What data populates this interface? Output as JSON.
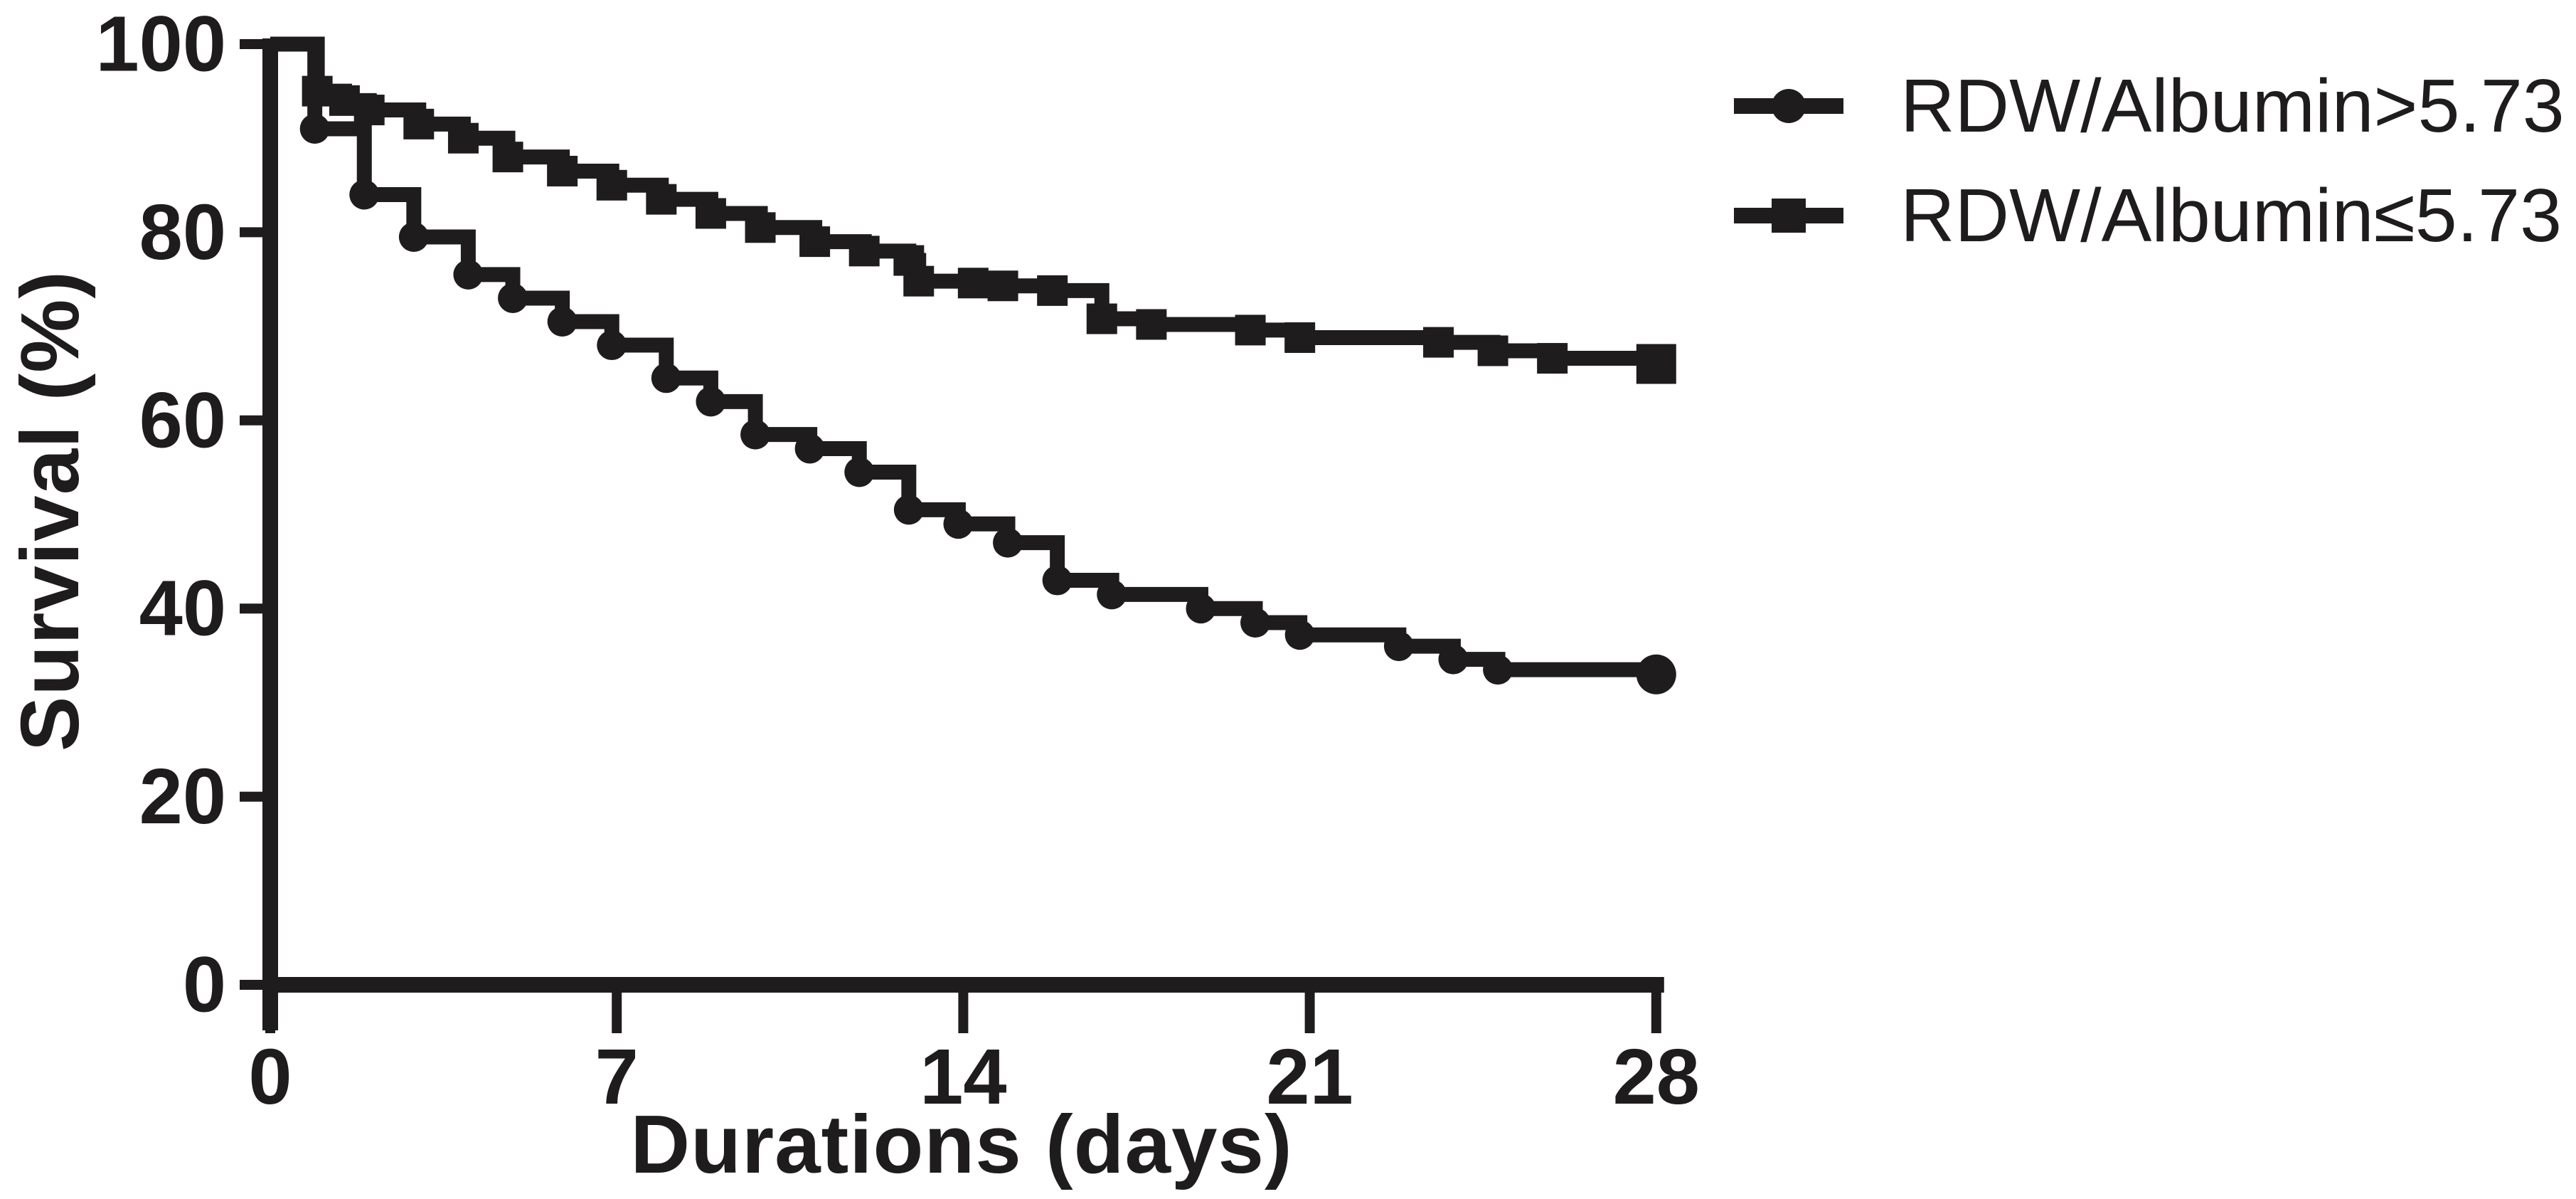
{
  "figure": {
    "background_color": "#ffffff",
    "ink_color": "#1f1c1d"
  },
  "y_axis": {
    "label": "Survival (%)",
    "tick_labels": [
      "0",
      "20",
      "40",
      "60",
      "80",
      "100"
    ],
    "ticks": [
      0,
      20,
      40,
      60,
      80,
      100
    ],
    "range": [
      0,
      100
    ]
  },
  "x_axis": {
    "label": "Durations (days)",
    "tick_labels": [
      "0",
      "7",
      "14",
      "21",
      "28"
    ],
    "ticks": [
      0,
      7,
      14,
      21,
      28
    ],
    "range": [
      0,
      28
    ]
  },
  "legend": {
    "items": [
      {
        "label": "RDW/Albumin>5.73",
        "marker": "circle"
      },
      {
        "label": "RDW/Albumin≤5.73",
        "marker": "square"
      }
    ],
    "position": "upper right"
  },
  "chart_data": {
    "type": "line",
    "subtype": "kaplan-meier-step",
    "title": "",
    "xlabel": "Durations (days)",
    "ylabel": "Survival (%)",
    "xlim": [
      0,
      28
    ],
    "ylim": [
      0,
      100
    ],
    "grid": false,
    "legend_position": "upper right",
    "series": [
      {
        "name": "RDW/Albumin>5.73",
        "marker": "circle",
        "color": "#1f1c1d",
        "points_day_percent": [
          [
            0,
            100
          ],
          [
            0.9,
            91
          ],
          [
            1.9,
            84
          ],
          [
            2.9,
            79.5
          ],
          [
            4,
            75.5
          ],
          [
            4.9,
            73
          ],
          [
            5.9,
            70.5
          ],
          [
            6.9,
            68
          ],
          [
            8,
            64.5
          ],
          [
            8.9,
            62
          ],
          [
            9.8,
            58.5
          ],
          [
            10.9,
            57
          ],
          [
            11.9,
            54.5
          ],
          [
            12.9,
            50.5
          ],
          [
            13.9,
            49
          ],
          [
            14.9,
            47
          ],
          [
            15.9,
            43
          ],
          [
            17,
            41.5
          ],
          [
            18.8,
            40
          ],
          [
            19.9,
            38.5
          ],
          [
            20.8,
            37.2
          ],
          [
            22.8,
            36
          ],
          [
            23.9,
            34.6
          ],
          [
            24.8,
            33.5
          ],
          [
            28,
            33
          ]
        ]
      },
      {
        "name": "RDW/Albumin≤5.73",
        "marker": "square",
        "color": "#1f1c1d",
        "points_day_percent": [
          [
            0,
            100
          ],
          [
            0.95,
            95
          ],
          [
            1.5,
            94
          ],
          [
            2,
            93
          ],
          [
            3,
            91.5
          ],
          [
            3.9,
            90
          ],
          [
            4.8,
            88
          ],
          [
            5.9,
            86.5
          ],
          [
            6.9,
            85
          ],
          [
            7.9,
            83.5
          ],
          [
            8.9,
            82
          ],
          [
            9.9,
            80.5
          ],
          [
            11,
            79
          ],
          [
            12,
            78
          ],
          [
            12.9,
            77
          ],
          [
            13.1,
            74.8
          ],
          [
            14.2,
            74.6
          ],
          [
            14.8,
            74.3
          ],
          [
            15.8,
            73.8
          ],
          [
            16.8,
            70.8
          ],
          [
            17.8,
            70.2
          ],
          [
            19.8,
            69.6
          ],
          [
            20.8,
            68.8
          ],
          [
            23.6,
            68.3
          ],
          [
            24.7,
            67.4
          ],
          [
            25.9,
            66.6
          ],
          [
            28,
            66
          ]
        ]
      }
    ]
  }
}
